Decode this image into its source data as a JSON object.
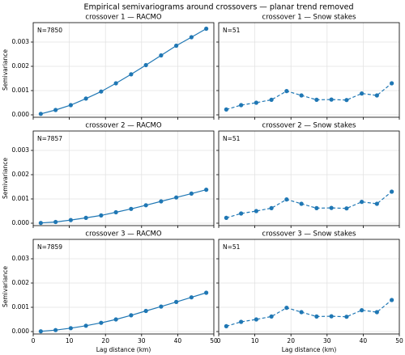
{
  "figure_title": "Empirical semivariograms around crossovers — planar trend removed",
  "chart_data": [
    {
      "type": "line",
      "title": "crossover 1 — RACMO",
      "annotation": "N=7850",
      "color": "#1f77b4",
      "linestyle": "solid",
      "x": [
        2.1,
        6.2,
        10.4,
        14.6,
        18.8,
        22.9,
        27.1,
        31.2,
        35.4,
        39.6,
        43.8,
        47.9
      ],
      "values": [
        4e-05,
        0.0002,
        0.0004,
        0.00067,
        0.00096,
        0.0013,
        0.00167,
        0.00205,
        0.00245,
        0.00285,
        0.0032,
        0.00355
      ],
      "xlim": [
        0,
        50
      ],
      "ylim": [
        -0.0001,
        0.0038
      ],
      "xticks": [
        0,
        10,
        20,
        30,
        40,
        50
      ],
      "yticks": [
        {
          "value": 0,
          "label": "0.000"
        },
        {
          "value": 0.001,
          "label": "0.001"
        },
        {
          "value": 0.002,
          "label": "0.002"
        },
        {
          "value": 0.003,
          "label": "0.003"
        }
      ],
      "ylabel": "Semivariance",
      "grid": true
    },
    {
      "type": "line",
      "title": "crossover 1 — Snow stakes",
      "annotation": "N=51",
      "color": "#1f77b4",
      "linestyle": "dashed",
      "x": [
        2.1,
        6.2,
        10.4,
        14.6,
        18.8,
        22.9,
        27.1,
        31.2,
        35.4,
        39.6,
        43.8,
        47.9
      ],
      "values": [
        0.00022,
        0.0004,
        0.0005,
        0.00062,
        0.00098,
        0.0008,
        0.00062,
        0.00063,
        0.00061,
        0.00088,
        0.0008,
        0.0013
      ],
      "xlim": [
        0,
        50
      ],
      "ylim": [
        -0.0001,
        0.0038
      ],
      "xticks": [
        0,
        10,
        20,
        30,
        40,
        50
      ],
      "yticks": [
        0,
        0.001,
        0.002,
        0.003
      ],
      "grid": true
    },
    {
      "type": "line",
      "title": "crossover 2 — RACMO",
      "annotation": "N=7857",
      "color": "#1f77b4",
      "linestyle": "solid",
      "x": [
        2.1,
        6.2,
        10.4,
        14.6,
        18.8,
        22.9,
        27.1,
        31.2,
        35.4,
        39.6,
        43.8,
        47.9
      ],
      "values": [
        1e-05,
        5e-05,
        0.00013,
        0.00022,
        0.00032,
        0.00045,
        0.00059,
        0.00074,
        0.0009,
        0.00106,
        0.00122,
        0.00138
      ],
      "xlim": [
        0,
        50
      ],
      "ylim": [
        -0.0001,
        0.0038
      ],
      "xticks": [
        0,
        10,
        20,
        30,
        40,
        50
      ],
      "yticks": [
        {
          "value": 0,
          "label": "0.000"
        },
        {
          "value": 0.001,
          "label": "0.001"
        },
        {
          "value": 0.002,
          "label": "0.002"
        },
        {
          "value": 0.003,
          "label": "0.003"
        }
      ],
      "ylabel": "Semivariance",
      "grid": true
    },
    {
      "type": "line",
      "title": "crossover 2 — Snow stakes",
      "annotation": "N=51",
      "color": "#1f77b4",
      "linestyle": "dashed",
      "x": [
        2.1,
        6.2,
        10.4,
        14.6,
        18.8,
        22.9,
        27.1,
        31.2,
        35.4,
        39.6,
        43.8,
        47.9
      ],
      "values": [
        0.00022,
        0.0004,
        0.0005,
        0.00062,
        0.00098,
        0.0008,
        0.00062,
        0.00063,
        0.00061,
        0.00088,
        0.0008,
        0.0013
      ],
      "xlim": [
        0,
        50
      ],
      "ylim": [
        -0.0001,
        0.0038
      ],
      "xticks": [
        0,
        10,
        20,
        30,
        40,
        50
      ],
      "yticks": [
        0,
        0.001,
        0.002,
        0.003
      ],
      "grid": true
    },
    {
      "type": "line",
      "title": "crossover 3 — RACMO",
      "annotation": "N=7859",
      "color": "#1f77b4",
      "linestyle": "solid",
      "x": [
        2.1,
        6.2,
        10.4,
        14.6,
        18.8,
        22.9,
        27.1,
        31.2,
        35.4,
        39.6,
        43.8,
        47.9
      ],
      "values": [
        1e-05,
        6e-05,
        0.00014,
        0.00024,
        0.00036,
        0.0005,
        0.00067,
        0.00085,
        0.00103,
        0.00122,
        0.00141,
        0.0016
      ],
      "xlim": [
        0,
        50
      ],
      "ylim": [
        -0.0001,
        0.0038
      ],
      "xticks": [
        0,
        10,
        20,
        30,
        40,
        50
      ],
      "yticks": [
        {
          "value": 0,
          "label": "0.000"
        },
        {
          "value": 0.001,
          "label": "0.001"
        },
        {
          "value": 0.002,
          "label": "0.002"
        },
        {
          "value": 0.003,
          "label": "0.003"
        }
      ],
      "ylabel": "Semivariance",
      "xlabel": "Lag distance (km)",
      "grid": true
    },
    {
      "type": "line",
      "title": "crossover 3 — Snow stakes",
      "annotation": "N=51",
      "color": "#1f77b4",
      "linestyle": "dashed",
      "x": [
        2.1,
        6.2,
        10.4,
        14.6,
        18.8,
        22.9,
        27.1,
        31.2,
        35.4,
        39.6,
        43.8,
        47.9
      ],
      "values": [
        0.00022,
        0.0004,
        0.0005,
        0.00062,
        0.00098,
        0.0008,
        0.00062,
        0.00063,
        0.00061,
        0.00088,
        0.0008,
        0.0013
      ],
      "xlim": [
        0,
        50
      ],
      "ylim": [
        -0.0001,
        0.0038
      ],
      "xticks": [
        0,
        10,
        20,
        30,
        40,
        50
      ],
      "yticks": [
        0,
        0.001,
        0.002,
        0.003
      ],
      "xlabel": "Lag distance (km)",
      "grid": true
    }
  ]
}
